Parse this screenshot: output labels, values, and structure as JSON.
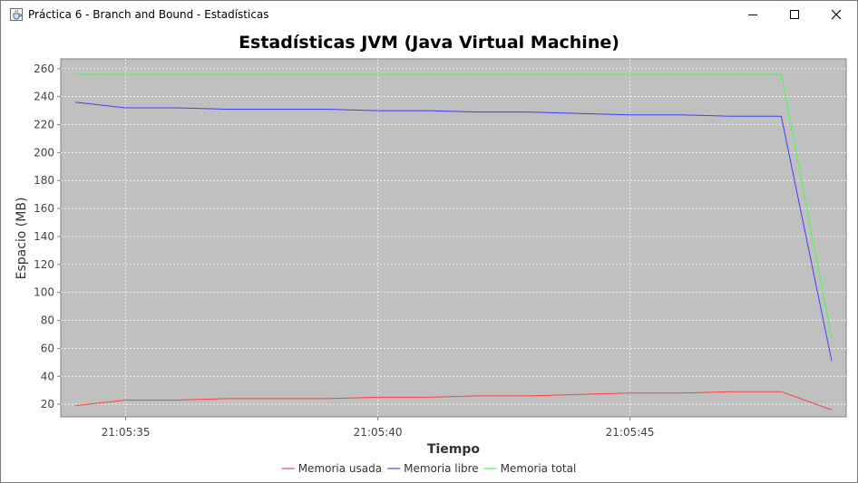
{
  "window": {
    "title": "Práctica 6 - Branch and Bound - Estadísticas",
    "icon": "java-cup-icon",
    "buttons": [
      "minimize-icon",
      "maximize-icon",
      "close-icon"
    ]
  },
  "chart_data": {
    "type": "line",
    "title": "Estadísticas JVM (Java Virtual Machine)",
    "xlabel": "Tiempo",
    "ylabel": "Espacio (MB)",
    "x": [
      "21:05:34",
      "21:05:35",
      "21:05:36",
      "21:05:37",
      "21:05:38",
      "21:05:39",
      "21:05:40",
      "21:05:41",
      "21:05:42",
      "21:05:43",
      "21:05:44",
      "21:05:45",
      "21:05:46",
      "21:05:47",
      "21:05:48",
      "21:05:49"
    ],
    "xtick_labels": [
      "21:05:35",
      "21:05:40",
      "21:05:45"
    ],
    "ylim": [
      11,
      267
    ],
    "yticks": [
      20,
      40,
      60,
      80,
      100,
      120,
      140,
      160,
      180,
      200,
      220,
      240,
      260
    ],
    "grid": true,
    "legend": "bottom",
    "series": [
      {
        "name": "Memoria usada",
        "color": "#ff4040",
        "values": [
          19,
          23,
          23,
          24,
          24,
          24,
          25,
          25,
          26,
          26,
          27,
          28,
          28,
          29,
          29,
          16
        ]
      },
      {
        "name": "Memoria libre",
        "color": "#4040ff",
        "values": [
          236,
          232,
          232,
          231,
          231,
          231,
          230,
          230,
          229,
          229,
          228,
          227,
          227,
          226,
          226,
          51
        ]
      },
      {
        "name": "Memoria total",
        "color": "#40ff40",
        "values": [
          256,
          256,
          256,
          256,
          256,
          256,
          256,
          256,
          256,
          256,
          256,
          256,
          256,
          256,
          256,
          67
        ]
      }
    ]
  }
}
